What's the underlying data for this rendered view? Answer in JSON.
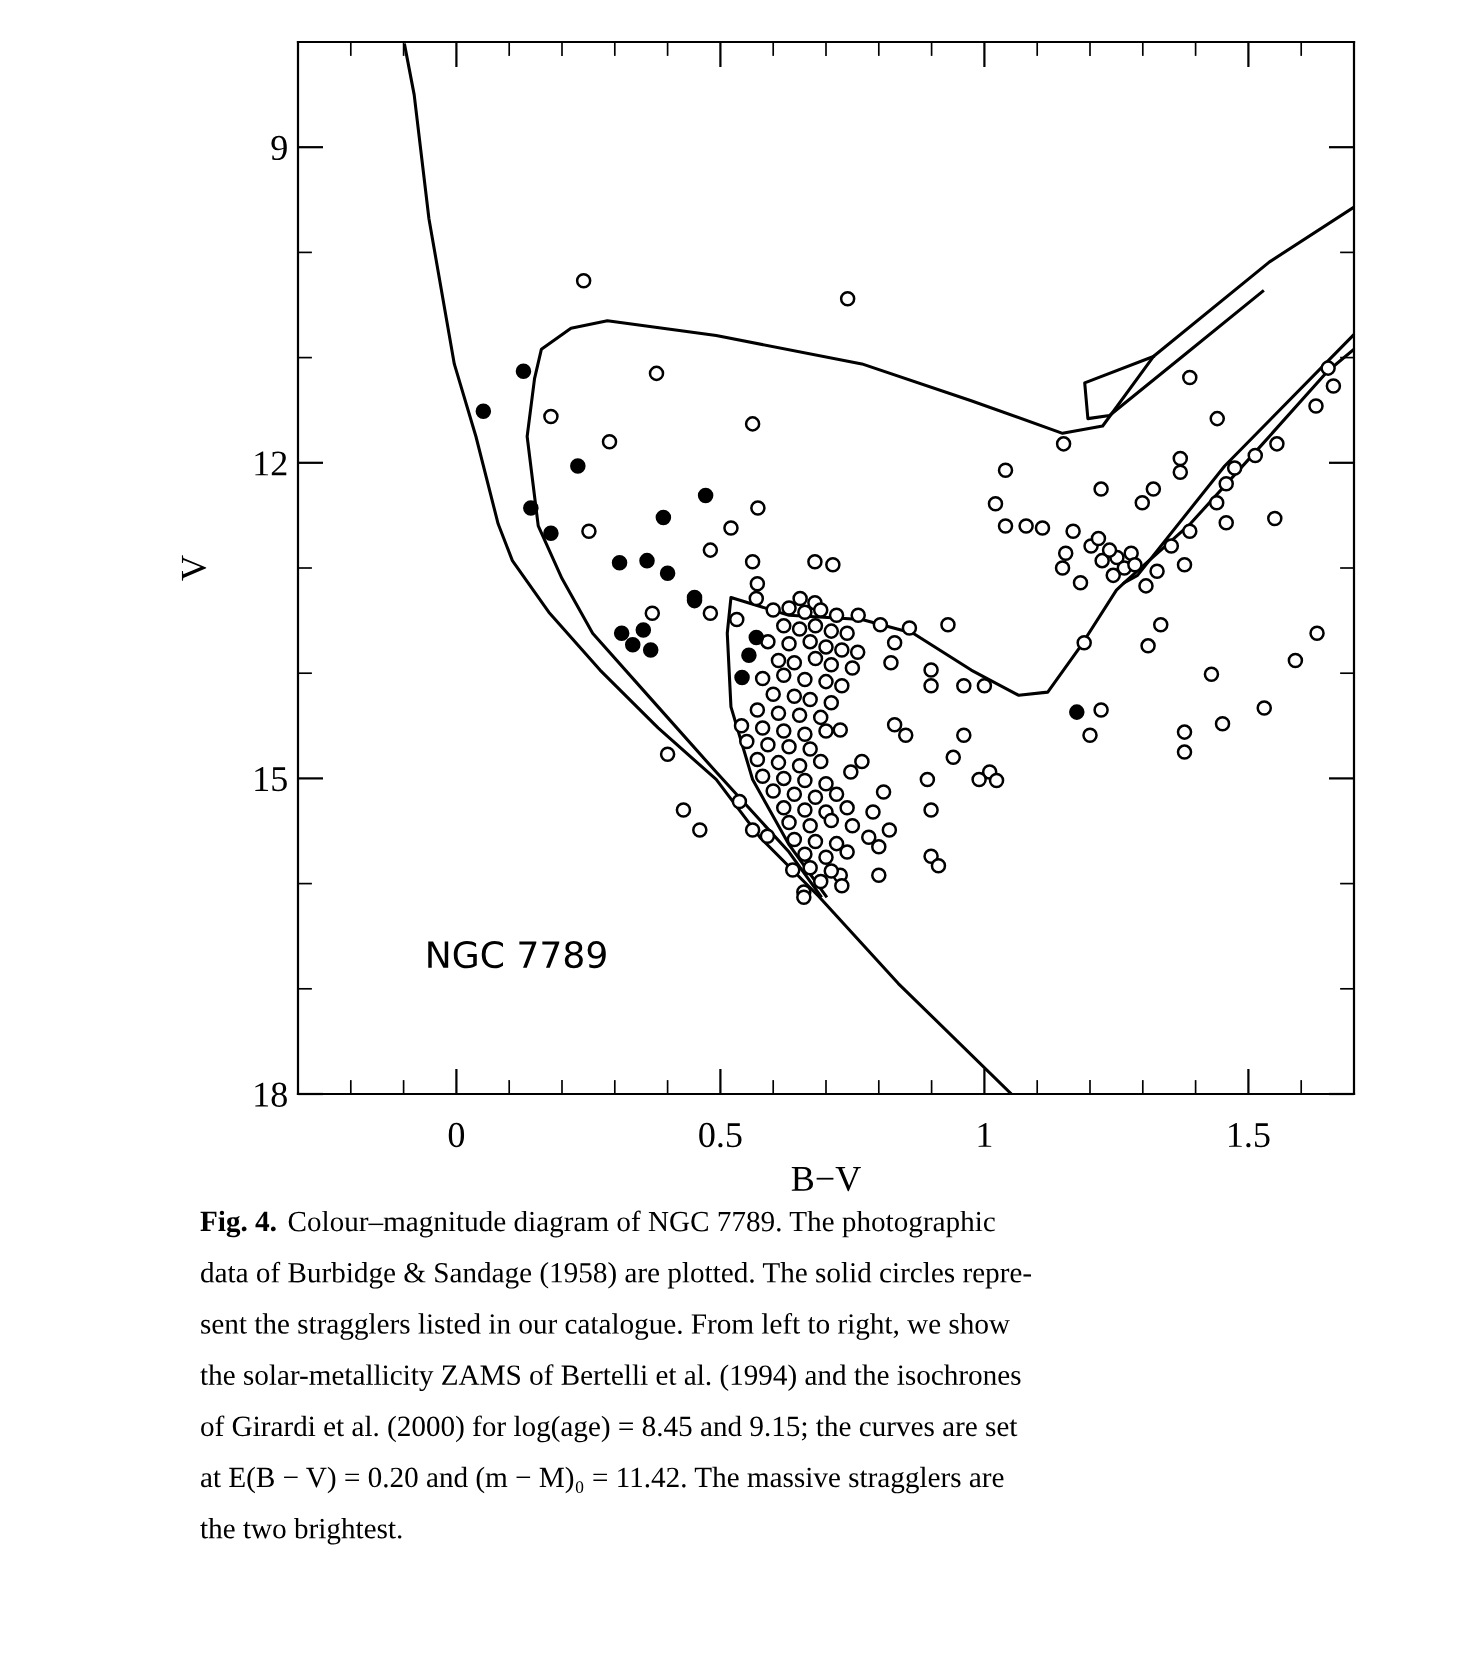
{
  "chart_data": {
    "type": "scatter",
    "xlabel": "B−V",
    "ylabel": "V",
    "xlim": [
      -0.3,
      1.7
    ],
    "ylim": [
      18,
      8
    ],
    "xticks": [
      {
        "value": -0.2,
        "label": null
      },
      {
        "value": -0.1,
        "label": null
      },
      0,
      {
        "value": 0.1,
        "label": null
      },
      {
        "value": 0.2,
        "label": null
      },
      {
        "value": 0.3,
        "label": null
      },
      {
        "value": 0.4,
        "label": null
      },
      0.5,
      {
        "value": 0.6,
        "label": null
      },
      {
        "value": 0.7,
        "label": null
      },
      {
        "value": 0.8,
        "label": null
      },
      {
        "value": 0.9,
        "label": null
      },
      1,
      {
        "value": 1.1,
        "label": null
      },
      {
        "value": 1.2,
        "label": null
      },
      {
        "value": 1.3,
        "label": null
      },
      {
        "value": 1.4,
        "label": null
      },
      1.5,
      {
        "value": 1.6,
        "label": null
      }
    ],
    "yticks": [
      9,
      {
        "value": 10,
        "label": null
      },
      {
        "value": 11,
        "label": null
      },
      12,
      {
        "value": 13,
        "label": null
      },
      {
        "value": 14,
        "label": null
      },
      15,
      {
        "value": 16,
        "label": null
      },
      {
        "value": 17,
        "label": null
      },
      18
    ],
    "annotations": [
      "NGC 7789",
      "Fig. 4.",
      "Colour–magnitude diagram of NGC 7789. The photographic\ndata of Burbidge & Sandage (1958) are plotted. The solid circles repre-\nsent the stragglers listed in our catalogue. From left to right, we show\nthe solar-metallicity ZAMS of Bertelli et al. (1994) and the isochrones\nof Girardi et al. (2000) for log(age) = 8.45 and 9.15; the curves are set\nat E(B − V) = 0.20 and (m − M)₀ = 11.42. The massive stragglers are\nthe two brightest."
    ],
    "series": [
      {
        "type": "line",
        "color": "#000000",
        "x": [
          -0.098,
          -0.08,
          -0.052,
          -0.004,
          0.037,
          0.079,
          0.106,
          0.175,
          0.272,
          0.382,
          0.492,
          0.575,
          0.686,
          0.837,
          1.051
        ],
        "values": [
          8.03,
          8.5,
          9.68,
          11.06,
          11.75,
          12.58,
          12.93,
          13.42,
          13.97,
          14.52,
          15.01,
          15.56,
          16.12,
          16.95,
          18.0
        ]
      },
      {
        "type": "line",
        "color": "#000000",
        "x": [
          0.69,
          0.63,
          0.492,
          0.382,
          0.258,
          0.2,
          0.155,
          0.134,
          0.148,
          0.161,
          0.217,
          0.286,
          0.492,
          0.768,
          0.975,
          1.148,
          1.224,
          1.32,
          1.54,
          1.7
        ],
        "values": [
          16.12,
          15.7,
          14.94,
          14.32,
          13.62,
          13.1,
          12.6,
          11.75,
          11.2,
          10.92,
          10.72,
          10.65,
          10.79,
          11.06,
          11.41,
          11.72,
          11.65,
          10.99,
          10.09,
          9.57
        ]
      },
      {
        "type": "line",
        "color": "#000000",
        "x": [
          1.32,
          1.19,
          1.196,
          1.237,
          1.375,
          1.527
        ],
        "values": [
          10.99,
          11.24,
          11.58,
          11.55,
          10.99,
          10.37
        ]
      },
      {
        "type": "line",
        "color": "#000000",
        "x": [
          0.7,
          0.63,
          0.561,
          0.52,
          0.513,
          0.52,
          0.63,
          0.768,
          0.865,
          0.975,
          1.065,
          1.12,
          1.18,
          1.25,
          1.265,
          1.39,
          1.527,
          1.65,
          1.7
        ],
        "values": [
          16.12,
          15.63,
          15.01,
          14.32,
          13.62,
          13.28,
          13.45,
          13.49,
          13.62,
          13.97,
          14.21,
          14.18,
          13.76,
          13.21,
          13.14,
          12.58,
          11.82,
          11.13,
          10.92
        ]
      },
      {
        "type": "line",
        "color": "#000000",
        "x": [
          1.265,
          1.29,
          1.455,
          1.7
        ],
        "values": [
          13.14,
          13.07,
          12.03,
          10.78
        ]
      },
      {
        "color": "#ffffff",
        "x": [
          0.241,
          0.741,
          0.379,
          0.561,
          0.179,
          0.29,
          0.571,
          0.52,
          0.251,
          0.481,
          0.561,
          0.679,
          0.713,
          0.57,
          1.389,
          1.15,
          1.04,
          1.441,
          1.371,
          1.371,
          1.221,
          1.021,
          1.04,
          1.079,
          1.11,
          1.651,
          1.661,
          1.628,
          1.554,
          1.513,
          1.474,
          1.458,
          1.44,
          1.458,
          1.55,
          1.389,
          1.32,
          1.299,
          1.354,
          1.379,
          1.168,
          1.154,
          1.148,
          1.182,
          1.306,
          1.327,
          1.202,
          1.251,
          1.223,
          1.265,
          1.237,
          1.278,
          1.244,
          1.216,
          1.285,
          0.371,
          0.481,
          0.531,
          0.568,
          0.651,
          0.679,
          0.761,
          0.803,
          0.858,
          0.931,
          0.83,
          0.823,
          0.899,
          0.899,
          0.961,
          1.0,
          1.334,
          1.31,
          1.189,
          1.43,
          1.589,
          1.63,
          1.53,
          1.451,
          1.379,
          1.379,
          1.221,
          1.2,
          0.961,
          0.941,
          1.01,
          0.99,
          1.023,
          0.892,
          0.899,
          0.899,
          0.913,
          0.8,
          0.8,
          0.82,
          0.781,
          0.809,
          0.789,
          0.83,
          0.851,
          0.768,
          0.747,
          0.727,
          0.4,
          0.43,
          0.461,
          0.561,
          0.589,
          0.658,
          0.658,
          0.637,
          0.727,
          0.536,
          0.6,
          0.63,
          0.66,
          0.69,
          0.72,
          0.62,
          0.65,
          0.68,
          0.71,
          0.74,
          0.59,
          0.63,
          0.67,
          0.7,
          0.73,
          0.76,
          0.61,
          0.64,
          0.68,
          0.71,
          0.75,
          0.58,
          0.62,
          0.66,
          0.7,
          0.73,
          0.6,
          0.64,
          0.67,
          0.71,
          0.57,
          0.61,
          0.65,
          0.69,
          0.54,
          0.58,
          0.62,
          0.66,
          0.7,
          0.55,
          0.59,
          0.63,
          0.67,
          0.57,
          0.61,
          0.65,
          0.69,
          0.58,
          0.62,
          0.66,
          0.7,
          0.6,
          0.64,
          0.68,
          0.72,
          0.62,
          0.66,
          0.7,
          0.74,
          0.63,
          0.67,
          0.71,
          0.75,
          0.64,
          0.68,
          0.72,
          0.66,
          0.7,
          0.74,
          0.67,
          0.71,
          0.69,
          0.73
        ],
        "values": [
          10.27,
          10.44,
          11.15,
          11.63,
          11.56,
          11.8,
          12.43,
          12.62,
          12.65,
          12.83,
          12.94,
          12.94,
          12.97,
          13.15,
          11.19,
          11.82,
          12.07,
          11.58,
          11.96,
          12.09,
          12.25,
          12.39,
          12.6,
          12.6,
          12.62,
          11.1,
          11.27,
          11.46,
          11.82,
          11.93,
          12.05,
          12.2,
          12.38,
          12.57,
          12.53,
          12.65,
          12.25,
          12.38,
          12.79,
          12.97,
          12.65,
          12.86,
          13.0,
          13.14,
          13.17,
          13.03,
          12.79,
          12.9,
          12.93,
          13.0,
          12.83,
          12.86,
          13.07,
          12.72,
          12.97,
          13.43,
          13.43,
          13.49,
          13.29,
          13.29,
          13.33,
          13.45,
          13.54,
          13.57,
          13.54,
          13.71,
          13.9,
          13.97,
          14.12,
          14.12,
          14.12,
          13.54,
          13.74,
          13.71,
          14.01,
          13.88,
          13.62,
          14.33,
          14.48,
          14.56,
          14.75,
          14.35,
          14.59,
          14.59,
          14.8,
          14.94,
          15.01,
          15.02,
          15.01,
          15.3,
          15.74,
          15.83,
          15.92,
          15.65,
          15.49,
          15.56,
          15.13,
          15.32,
          14.49,
          14.59,
          14.84,
          14.94,
          14.54,
          14.77,
          15.3,
          15.49,
          15.49,
          15.55,
          16.08,
          16.13,
          15.87,
          15.92,
          15.22,
          13.4,
          13.38,
          13.42,
          13.4,
          13.45,
          13.55,
          13.58,
          13.55,
          13.6,
          13.62,
          13.7,
          13.72,
          13.7,
          13.75,
          13.78,
          13.8,
          13.88,
          13.9,
          13.86,
          13.92,
          13.95,
          14.05,
          14.02,
          14.06,
          14.08,
          14.12,
          14.2,
          14.22,
          14.25,
          14.28,
          14.35,
          14.38,
          14.4,
          14.42,
          14.5,
          14.52,
          14.55,
          14.58,
          14.55,
          14.65,
          14.68,
          14.7,
          14.72,
          14.82,
          14.85,
          14.88,
          14.84,
          14.98,
          15.0,
          15.02,
          15.05,
          15.12,
          15.15,
          15.18,
          15.15,
          15.28,
          15.3,
          15.32,
          15.28,
          15.42,
          15.45,
          15.4,
          15.45,
          15.58,
          15.6,
          15.62,
          15.72,
          15.75,
          15.7,
          15.85,
          15.88,
          15.98,
          16.02
        ]
      },
      {
        "color": "#000000",
        "x": [
          0.051,
          0.127,
          0.23,
          0.141,
          0.179,
          0.472,
          0.392,
          0.309,
          0.361,
          0.4,
          0.451,
          0.313,
          0.334,
          0.354,
          0.368,
          0.451,
          0.541,
          0.554,
          0.568,
          1.175
        ],
        "values": [
          11.51,
          11.13,
          12.03,
          12.43,
          12.67,
          12.31,
          12.52,
          12.95,
          12.93,
          13.05,
          13.28,
          13.62,
          13.73,
          13.59,
          13.78,
          13.31,
          14.04,
          13.83,
          13.66,
          14.37
        ]
      }
    ]
  }
}
